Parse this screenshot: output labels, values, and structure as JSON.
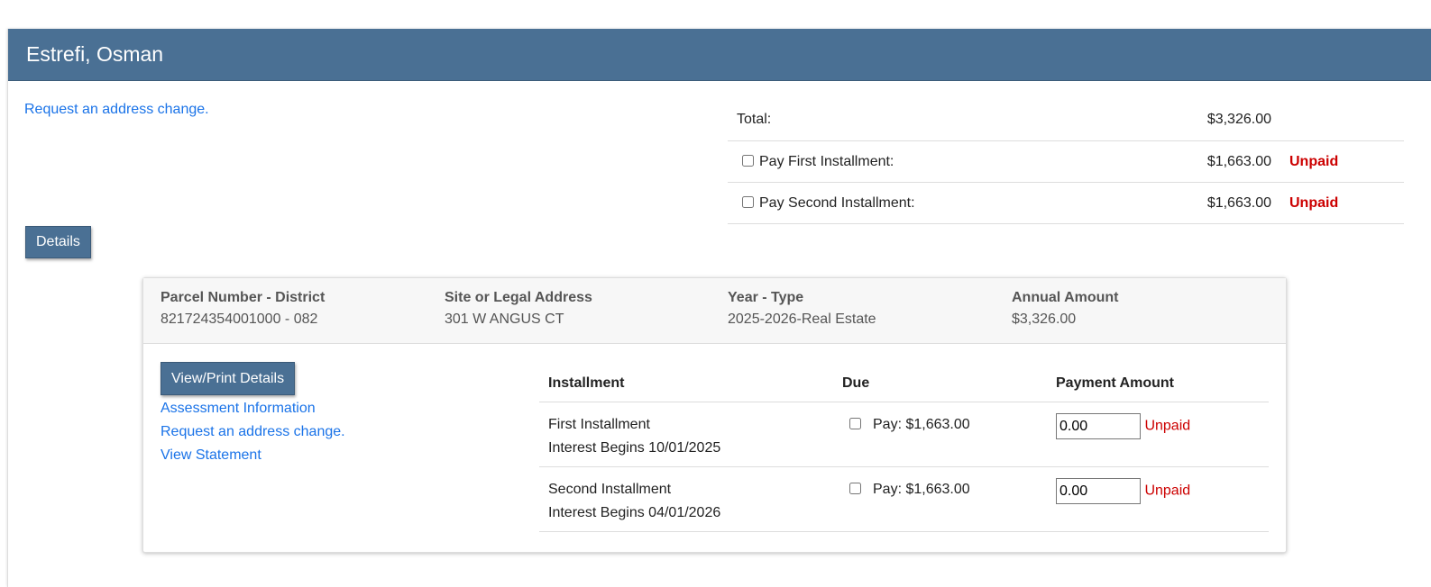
{
  "owner_name": "Estrefi, Osman",
  "address_change_link": "Request an address change.",
  "details_button": "Details",
  "summary": {
    "total_label": "Total:",
    "total_amount": "$3,326.00",
    "rows": [
      {
        "label": "Pay First Installment:",
        "amount": "$1,663.00",
        "status": "Unpaid"
      },
      {
        "label": "Pay Second Installment:",
        "amount": "$1,663.00",
        "status": "Unpaid"
      }
    ]
  },
  "parcel": {
    "columns": [
      {
        "header": "Parcel Number - District",
        "value": "821724354001000 - 082"
      },
      {
        "header": "Site or Legal Address",
        "value": "301 W ANGUS CT"
      },
      {
        "header": "Year - Type",
        "value": "2025-2026-Real Estate"
      },
      {
        "header": "Annual Amount",
        "value": "$3,326.00"
      }
    ],
    "view_print_button": "View/Print Details",
    "links": [
      "Assessment Information",
      "Request an address change.",
      "View Statement"
    ],
    "table": {
      "headers": [
        "Installment",
        "Due",
        "Payment Amount"
      ],
      "rows": [
        {
          "name": "First Installment",
          "interest": "Interest Begins 10/01/2025",
          "due": "Pay: $1,663.00",
          "amount": "0.00",
          "status": "Unpaid"
        },
        {
          "name": "Second Installment",
          "interest": "Interest Begins 04/01/2026",
          "due": "Pay: $1,663.00",
          "amount": "0.00",
          "status": "Unpaid"
        }
      ]
    }
  },
  "colors": {
    "header_bg": "#4a7094",
    "link": "#1a73e8",
    "unpaid": "#cc0000"
  }
}
